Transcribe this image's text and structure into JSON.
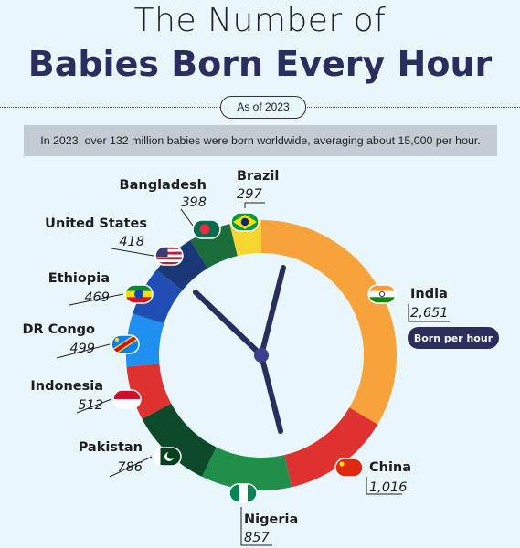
{
  "header": {
    "title_line1": "The Number of",
    "title_line2": "Babies Born Every Hour",
    "as_of": "As of 2023",
    "note": "In 2023, over 132 million babies were born worldwide, averaging about 15,000 per hour."
  },
  "legend_badge": "Born per hour",
  "chart_data": {
    "type": "pie",
    "style": "donut-clock",
    "title": "Babies Born Every Hour",
    "unit": "Born per hour",
    "series": [
      {
        "name": "India",
        "value": 2651,
        "label": "2,651",
        "color": "#f7a23b",
        "flag": "india-flag"
      },
      {
        "name": "China",
        "value": 1016,
        "label": "1,016",
        "color": "#e03131",
        "flag": "china-flag"
      },
      {
        "name": "Nigeria",
        "value": 857,
        "label": "857",
        "color": "#1f8f4a",
        "flag": "nigeria-flag"
      },
      {
        "name": "Pakistan",
        "value": 786,
        "label": "786",
        "color": "#0d4a2a",
        "flag": "pakistan-flag"
      },
      {
        "name": "Indonesia",
        "value": 512,
        "label": "512",
        "color": "#e03131",
        "flag": "indonesia-flag"
      },
      {
        "name": "DR Congo",
        "value": 499,
        "label": "499",
        "color": "#1f8ff0",
        "flag": "dr-congo-flag"
      },
      {
        "name": "Ethiopia",
        "value": 469,
        "label": "469",
        "color": "#1f4fb5",
        "flag": "ethiopia-flag"
      },
      {
        "name": "United States",
        "value": 418,
        "label": "418",
        "color": "#1a3877",
        "flag": "us-flag"
      },
      {
        "name": "Bangladesh",
        "value": 398,
        "label": "398",
        "color": "#1a6d3a",
        "flag": "bangladesh-flag"
      },
      {
        "name": "Brazil",
        "value": 297,
        "label": "297",
        "color": "#f7d531",
        "flag": "brazil-flag"
      }
    ]
  }
}
